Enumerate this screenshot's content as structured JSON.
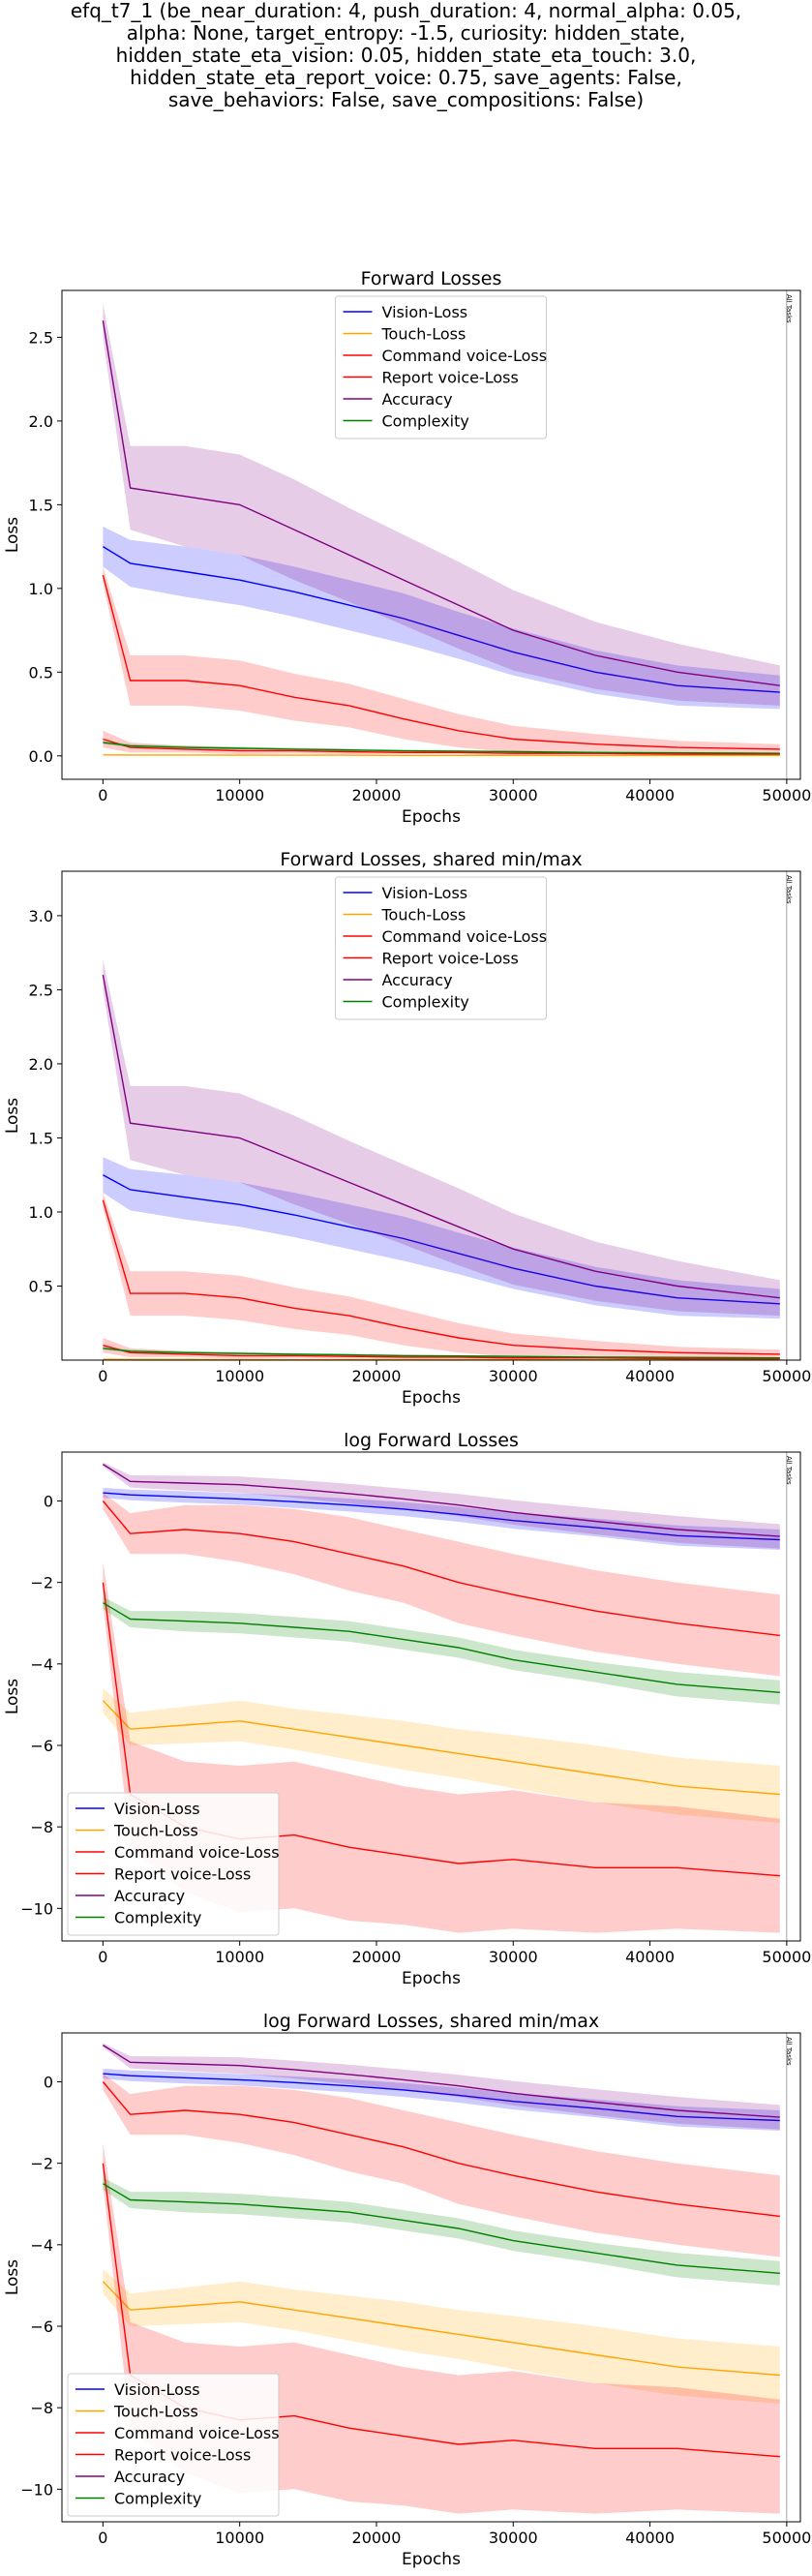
{
  "figure": {
    "suptitle": "efq_t7_1 (be_near_duration: 4, push_duration: 4, normal_alpha: 0.05,\nalpha: None, target_entropy: -1.5, curiosity: hidden_state,\nhidden_state_eta_vision: 0.05, hidden_state_eta_touch: 3.0,\nhidden_state_eta_report_voice: 0.75, save_agents: False,\nsave_behaviors: False, save_compositions: False)"
  },
  "colors": {
    "vision": "#0000ff",
    "touch": "#ffa500",
    "command": "#ff0000",
    "report": "#ff0000",
    "accuracy": "#800080",
    "complexity": "#008000"
  },
  "chart_data": [
    {
      "type": "line",
      "title": "Forward Losses",
      "xlabel": "Epochs",
      "ylabel": "Loss",
      "xlim": [
        -3000,
        51000
      ],
      "ylim": [
        -0.14,
        2.78
      ],
      "xticks": [
        0,
        10000,
        20000,
        30000,
        40000,
        50000
      ],
      "yticks": [
        0.0,
        0.5,
        1.0,
        1.5,
        2.0,
        2.5
      ],
      "ytick_labels": [
        "0.0",
        "0.5",
        "1.0",
        "1.5",
        "2.0",
        "2.5"
      ],
      "annotation": "All Tasks",
      "annotation_x": 50000,
      "legend_loc": "upper-center",
      "series": [
        {
          "name": "Vision-Loss",
          "color": "vision",
          "values": [
            1.25,
            1.15,
            1.1,
            1.05,
            0.98,
            0.9,
            0.82,
            0.72,
            0.62,
            0.5,
            0.42,
            0.38
          ],
          "band": [
            0.12,
            0.14,
            0.15,
            0.15,
            0.15,
            0.15,
            0.15,
            0.14,
            0.14,
            0.13,
            0.12,
            0.1
          ]
        },
        {
          "name": "Touch-Loss",
          "color": "touch",
          "values": [
            0.006,
            0.005,
            0.005,
            0.004,
            0.004,
            0.004,
            0.003,
            0.003,
            0.003,
            0.002,
            0.002,
            0.002
          ],
          "band": [
            0.002,
            0.002,
            0.002,
            0.002,
            0.002,
            0.002,
            0.002,
            0.001,
            0.001,
            0.001,
            0.001,
            0.001
          ]
        },
        {
          "name": "Command voice-Loss",
          "color": "command",
          "values": [
            0.1,
            0.05,
            0.04,
            0.03,
            0.03,
            0.025,
            0.02,
            0.02,
            0.015,
            0.015,
            0.01,
            0.01
          ],
          "band": [
            0.05,
            0.03,
            0.02,
            0.02,
            0.015,
            0.015,
            0.01,
            0.01,
            0.01,
            0.01,
            0.005,
            0.005
          ]
        },
        {
          "name": "Report voice-Loss",
          "color": "report",
          "values": [
            1.08,
            0.45,
            0.45,
            0.42,
            0.35,
            0.3,
            0.22,
            0.15,
            0.1,
            0.07,
            0.05,
            0.04
          ],
          "band": [
            0.05,
            0.15,
            0.15,
            0.15,
            0.14,
            0.13,
            0.12,
            0.1,
            0.08,
            0.06,
            0.04,
            0.03
          ]
        },
        {
          "name": "Accuracy",
          "color": "accuracy",
          "values": [
            2.6,
            1.6,
            1.55,
            1.5,
            1.35,
            1.2,
            1.05,
            0.9,
            0.75,
            0.6,
            0.5,
            0.42
          ],
          "band": [
            0.1,
            0.25,
            0.3,
            0.3,
            0.3,
            0.28,
            0.27,
            0.26,
            0.24,
            0.2,
            0.17,
            0.12
          ]
        },
        {
          "name": "Complexity",
          "color": "complexity",
          "values": [
            0.08,
            0.06,
            0.05,
            0.045,
            0.04,
            0.035,
            0.03,
            0.028,
            0.025,
            0.02,
            0.018,
            0.015
          ],
          "band": [
            0.01,
            0.01,
            0.01,
            0.01,
            0.008,
            0.008,
            0.007,
            0.006,
            0.006,
            0.005,
            0.005,
            0.004
          ]
        }
      ]
    },
    {
      "type": "line",
      "title": "Forward Losses, shared min/max",
      "xlabel": "Epochs",
      "ylabel": "Loss",
      "xlim": [
        -3000,
        51000
      ],
      "ylim": [
        0.0,
        3.3
      ],
      "xticks": [
        0,
        10000,
        20000,
        30000,
        40000,
        50000
      ],
      "yticks": [
        0.5,
        1.0,
        1.5,
        2.0,
        2.5,
        3.0
      ],
      "ytick_labels": [
        "0.5",
        "1.0",
        "1.5",
        "2.0",
        "2.5",
        "3.0"
      ],
      "annotation": "All Tasks",
      "annotation_x": 50000,
      "legend_loc": "upper-center",
      "series": [
        {
          "name": "Vision-Loss",
          "color": "vision",
          "values": [
            1.25,
            1.15,
            1.1,
            1.05,
            0.98,
            0.9,
            0.82,
            0.72,
            0.62,
            0.5,
            0.42,
            0.38
          ],
          "band": [
            0.12,
            0.14,
            0.15,
            0.15,
            0.15,
            0.15,
            0.15,
            0.14,
            0.14,
            0.13,
            0.12,
            0.1
          ]
        },
        {
          "name": "Touch-Loss",
          "color": "touch",
          "values": [
            0.006,
            0.005,
            0.005,
            0.004,
            0.004,
            0.004,
            0.003,
            0.003,
            0.003,
            0.002,
            0.002,
            0.002
          ],
          "band": [
            0.002,
            0.002,
            0.002,
            0.002,
            0.002,
            0.002,
            0.002,
            0.001,
            0.001,
            0.001,
            0.001,
            0.001
          ]
        },
        {
          "name": "Command voice-Loss",
          "color": "command",
          "values": [
            0.1,
            0.05,
            0.04,
            0.03,
            0.03,
            0.025,
            0.02,
            0.02,
            0.015,
            0.015,
            0.01,
            0.01
          ],
          "band": [
            0.05,
            0.03,
            0.02,
            0.02,
            0.015,
            0.015,
            0.01,
            0.01,
            0.01,
            0.01,
            0.005,
            0.005
          ]
        },
        {
          "name": "Report voice-Loss",
          "color": "report",
          "values": [
            1.08,
            0.45,
            0.45,
            0.42,
            0.35,
            0.3,
            0.22,
            0.15,
            0.1,
            0.07,
            0.05,
            0.04
          ],
          "band": [
            0.05,
            0.15,
            0.15,
            0.15,
            0.14,
            0.13,
            0.12,
            0.1,
            0.08,
            0.06,
            0.04,
            0.03
          ]
        },
        {
          "name": "Accuracy",
          "color": "accuracy",
          "values": [
            2.6,
            1.6,
            1.55,
            1.5,
            1.35,
            1.2,
            1.05,
            0.9,
            0.75,
            0.6,
            0.5,
            0.42
          ],
          "band": [
            0.1,
            0.25,
            0.3,
            0.3,
            0.3,
            0.28,
            0.27,
            0.26,
            0.24,
            0.2,
            0.17,
            0.12
          ]
        },
        {
          "name": "Complexity",
          "color": "complexity",
          "values": [
            0.08,
            0.06,
            0.05,
            0.045,
            0.04,
            0.035,
            0.03,
            0.028,
            0.025,
            0.02,
            0.018,
            0.015
          ],
          "band": [
            0.01,
            0.01,
            0.01,
            0.01,
            0.008,
            0.008,
            0.007,
            0.006,
            0.006,
            0.005,
            0.005,
            0.004
          ]
        }
      ]
    },
    {
      "type": "line",
      "title": "log Forward Losses",
      "xlabel": "Epochs",
      "ylabel": "Loss",
      "xlim": [
        -3000,
        51000
      ],
      "ylim": [
        -10.8,
        1.2
      ],
      "xticks": [
        0,
        10000,
        20000,
        30000,
        40000,
        50000
      ],
      "yticks": [
        0,
        -2,
        -4,
        -6,
        -8,
        -10
      ],
      "ytick_labels": [
        "0",
        "−2",
        "−4",
        "−6",
        "−8",
        "−10"
      ],
      "annotation": "All Tasks",
      "annotation_x": 50000,
      "legend_loc": "lower-left",
      "series": [
        {
          "name": "Vision-Loss",
          "color": "vision",
          "values": [
            0.2,
            0.15,
            0.1,
            0.05,
            -0.02,
            -0.1,
            -0.2,
            -0.33,
            -0.48,
            -0.65,
            -0.85,
            -0.95
          ],
          "band": [
            0.12,
            0.13,
            0.14,
            0.14,
            0.15,
            0.16,
            0.17,
            0.18,
            0.2,
            0.22,
            0.25,
            0.25
          ]
        },
        {
          "name": "Touch-Loss",
          "color": "touch",
          "values": [
            -4.9,
            -5.6,
            -5.5,
            -5.4,
            -5.6,
            -5.8,
            -6.0,
            -6.2,
            -6.4,
            -6.7,
            -7.0,
            -7.2
          ],
          "band": [
            0.3,
            0.4,
            0.45,
            0.5,
            0.5,
            0.55,
            0.6,
            0.6,
            0.65,
            0.7,
            0.7,
            0.7
          ]
        },
        {
          "name": "Command voice-Loss",
          "color": "command",
          "values": [
            -2.0,
            -7.2,
            -8.0,
            -8.3,
            -8.2,
            -8.5,
            -8.7,
            -8.9,
            -8.8,
            -9.0,
            -9.0,
            -9.2
          ],
          "band": [
            0.5,
            1.3,
            1.6,
            1.8,
            1.8,
            1.8,
            1.7,
            1.7,
            1.7,
            1.6,
            1.5,
            1.4
          ]
        },
        {
          "name": "Report voice-Loss",
          "color": "report",
          "values": [
            0.0,
            -0.8,
            -0.7,
            -0.8,
            -1.0,
            -1.3,
            -1.6,
            -2.0,
            -2.3,
            -2.7,
            -3.0,
            -3.3
          ],
          "band": [
            0.2,
            0.5,
            0.6,
            0.7,
            0.8,
            0.9,
            0.9,
            1.0,
            1.0,
            1.0,
            1.0,
            1.0
          ]
        },
        {
          "name": "Accuracy",
          "color": "accuracy",
          "values": [
            0.9,
            0.48,
            0.44,
            0.4,
            0.3,
            0.18,
            0.05,
            -0.1,
            -0.28,
            -0.5,
            -0.7,
            -0.87
          ],
          "band": [
            0.05,
            0.15,
            0.18,
            0.2,
            0.22,
            0.24,
            0.25,
            0.27,
            0.3,
            0.32,
            0.33,
            0.3
          ]
        },
        {
          "name": "Complexity",
          "color": "complexity",
          "values": [
            -2.5,
            -2.9,
            -2.95,
            -3.0,
            -3.1,
            -3.2,
            -3.4,
            -3.6,
            -3.9,
            -4.2,
            -4.5,
            -4.7
          ],
          "band": [
            0.15,
            0.2,
            0.25,
            0.25,
            0.25,
            0.25,
            0.25,
            0.25,
            0.25,
            0.25,
            0.3,
            0.3
          ]
        }
      ]
    },
    {
      "type": "line",
      "title": "log Forward Losses, shared min/max",
      "xlabel": "Epochs",
      "ylabel": "Loss",
      "xlim": [
        -3000,
        51000
      ],
      "ylim": [
        -10.8,
        1.2
      ],
      "xticks": [
        0,
        10000,
        20000,
        30000,
        40000,
        50000
      ],
      "yticks": [
        0,
        -2,
        -4,
        -6,
        -8,
        -10
      ],
      "ytick_labels": [
        "0",
        "−2",
        "−4",
        "−6",
        "−8",
        "−10"
      ],
      "annotation": "All Tasks",
      "annotation_x": 50000,
      "legend_loc": "lower-left",
      "series": [
        {
          "name": "Vision-Loss",
          "color": "vision",
          "values": [
            0.2,
            0.15,
            0.1,
            0.05,
            -0.02,
            -0.1,
            -0.2,
            -0.33,
            -0.48,
            -0.65,
            -0.85,
            -0.95
          ],
          "band": [
            0.12,
            0.13,
            0.14,
            0.14,
            0.15,
            0.16,
            0.17,
            0.18,
            0.2,
            0.22,
            0.25,
            0.25
          ]
        },
        {
          "name": "Touch-Loss",
          "color": "touch",
          "values": [
            -4.9,
            -5.6,
            -5.5,
            -5.4,
            -5.6,
            -5.8,
            -6.0,
            -6.2,
            -6.4,
            -6.7,
            -7.0,
            -7.2
          ],
          "band": [
            0.3,
            0.4,
            0.45,
            0.5,
            0.5,
            0.55,
            0.6,
            0.6,
            0.65,
            0.7,
            0.7,
            0.7
          ]
        },
        {
          "name": "Command voice-Loss",
          "color": "command",
          "values": [
            -2.0,
            -7.2,
            -8.0,
            -8.3,
            -8.2,
            -8.5,
            -8.7,
            -8.9,
            -8.8,
            -9.0,
            -9.0,
            -9.2
          ],
          "band": [
            0.5,
            1.3,
            1.6,
            1.8,
            1.8,
            1.8,
            1.7,
            1.7,
            1.7,
            1.6,
            1.5,
            1.4
          ]
        },
        {
          "name": "Report voice-Loss",
          "color": "report",
          "values": [
            0.0,
            -0.8,
            -0.7,
            -0.8,
            -1.0,
            -1.3,
            -1.6,
            -2.0,
            -2.3,
            -2.7,
            -3.0,
            -3.3
          ],
          "band": [
            0.2,
            0.5,
            0.6,
            0.7,
            0.8,
            0.9,
            0.9,
            1.0,
            1.0,
            1.0,
            1.0,
            1.0
          ]
        },
        {
          "name": "Accuracy",
          "color": "accuracy",
          "values": [
            0.9,
            0.48,
            0.44,
            0.4,
            0.3,
            0.18,
            0.05,
            -0.1,
            -0.28,
            -0.5,
            -0.7,
            -0.87
          ],
          "band": [
            0.05,
            0.15,
            0.18,
            0.2,
            0.22,
            0.24,
            0.25,
            0.27,
            0.3,
            0.32,
            0.33,
            0.3
          ]
        },
        {
          "name": "Complexity",
          "color": "complexity",
          "values": [
            -2.5,
            -2.9,
            -2.95,
            -3.0,
            -3.1,
            -3.2,
            -3.4,
            -3.6,
            -3.9,
            -4.2,
            -4.5,
            -4.7
          ],
          "band": [
            0.15,
            0.2,
            0.25,
            0.25,
            0.25,
            0.25,
            0.25,
            0.25,
            0.25,
            0.25,
            0.3,
            0.3
          ]
        }
      ],
      "x": [
        0,
        2000,
        6000,
        10000,
        14000,
        18000,
        22000,
        26000,
        30000,
        36000,
        42000,
        49500
      ]
    }
  ],
  "x": [
    0,
    2000,
    6000,
    10000,
    14000,
    18000,
    22000,
    26000,
    30000,
    36000,
    42000,
    49500
  ]
}
